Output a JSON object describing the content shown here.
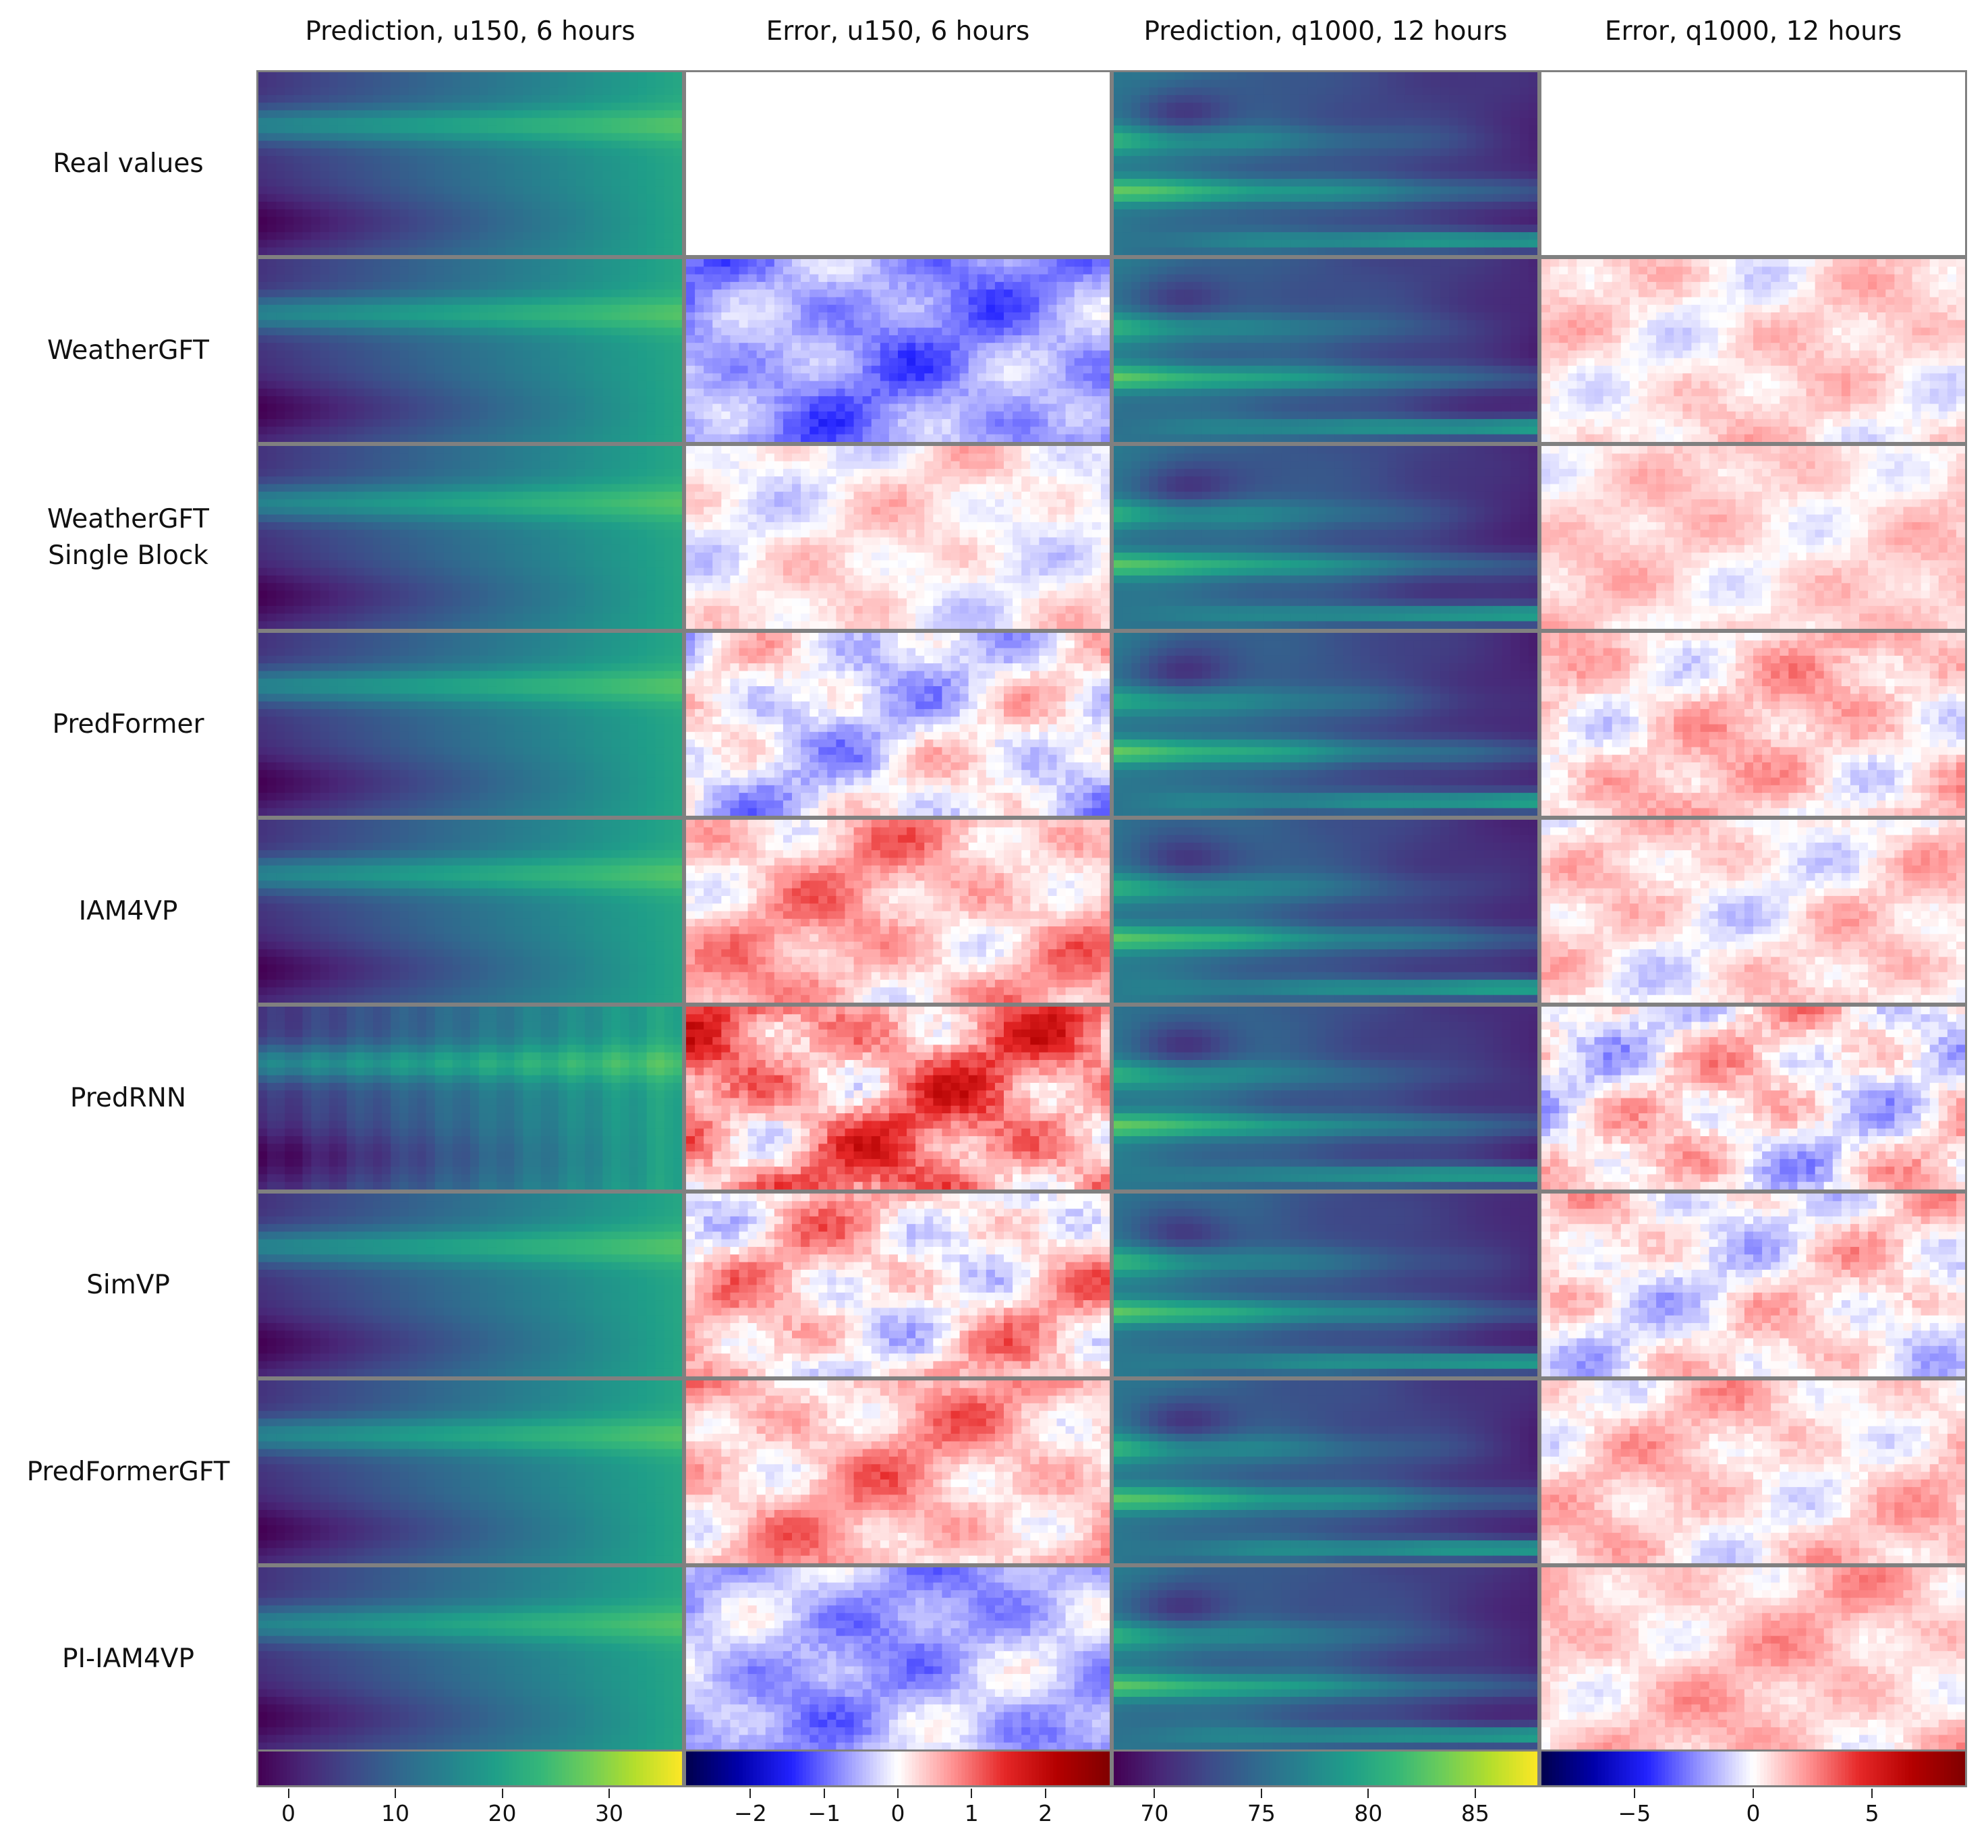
{
  "chart_data": {
    "type": "heatmap",
    "columns": [
      {
        "title": "Prediction, u150, 6 hours",
        "kind": "prediction",
        "variable": "u150",
        "lead_time": "6 hours",
        "colormap": "viridis",
        "range": [
          -3,
          37
        ],
        "ticks": [
          0,
          10,
          20,
          30
        ],
        "tick_labels": [
          "0",
          "10",
          "20",
          "30"
        ]
      },
      {
        "title": "Error, u150, 6 hours",
        "kind": "error",
        "variable": "u150",
        "lead_time": "6 hours",
        "colormap": "seismic",
        "range": [
          -2.9,
          2.9
        ],
        "ticks": [
          -2,
          -1,
          0,
          1,
          2
        ],
        "tick_labels": [
          "−2",
          "−1",
          "0",
          "1",
          "2"
        ]
      },
      {
        "title": "Prediction, q1000, 12 hours",
        "kind": "prediction",
        "variable": "q1000",
        "lead_time": "12 hours",
        "colormap": "viridis",
        "range": [
          68,
          88
        ],
        "ticks": [
          70,
          75,
          80,
          85
        ],
        "tick_labels": [
          "70",
          "75",
          "80",
          "85"
        ]
      },
      {
        "title": "Error, q1000, 12 hours",
        "kind": "error",
        "variable": "q1000",
        "lead_time": "12 hours",
        "colormap": "seismic",
        "range": [
          -9,
          9
        ],
        "ticks": [
          -5,
          0,
          5
        ],
        "tick_labels": [
          "−5",
          "0",
          "5"
        ]
      }
    ],
    "rows": [
      {
        "label": "Real values",
        "error_bias": [
          0,
          0
        ],
        "error_noise": 0
      },
      {
        "label": "WeatherGFT",
        "error_bias": [
          -0.9,
          1.2
        ],
        "error_noise": 0.35
      },
      {
        "label": "WeatherGFT\nSingle Block",
        "error_bias": [
          0.1,
          1.5
        ],
        "error_noise": 0.3
      },
      {
        "label": "PredFormer",
        "error_bias": [
          -0.2,
          2.0
        ],
        "error_noise": 0.45
      },
      {
        "label": "IAM4VP",
        "error_bias": [
          0.6,
          1.0
        ],
        "error_noise": 0.4
      },
      {
        "label": "PredRNN",
        "error_bias": [
          1.0,
          0.6
        ],
        "error_noise": 0.6
      },
      {
        "label": "SimVP",
        "error_bias": [
          0.3,
          0.4
        ],
        "error_noise": 0.5
      },
      {
        "label": "PredFormerGFT",
        "error_bias": [
          0.6,
          1.6
        ],
        "error_noise": 0.4
      },
      {
        "label": "PI-IAM4VP",
        "error_bias": [
          -0.7,
          2.2
        ],
        "error_noise": 0.35
      }
    ],
    "grid": false,
    "colorbar_position": "bottom"
  }
}
